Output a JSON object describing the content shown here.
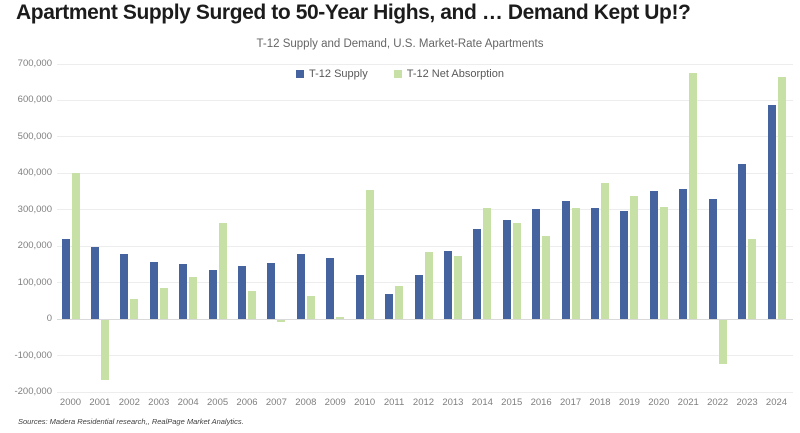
{
  "title": "Apartment Supply Surged to 50-Year Highs, and … Demand Kept Up!?",
  "subtitle": "T-12 Supply and Demand, U.S. Market-Rate Apartments",
  "legend": {
    "supply_label": "T-12 Supply",
    "absorption_label": "T-12 Net Absorption"
  },
  "source": "Sources: Madera Residential research,, RealPage Market Analytics.",
  "colors": {
    "supply": "#44639F",
    "absorption": "#C7E0A5",
    "grid": "#EDEDED",
    "zero_line": "#D9D9D9",
    "axis_text": "#7F7F7F",
    "title_text": "#1C1C1C"
  },
  "chart_data": {
    "type": "bar",
    "title": "Apartment Supply Surged to 50-Year Highs, and … Demand Kept Up!?",
    "subtitle": "T-12 Supply and Demand, U.S. Market-Rate Apartments",
    "categories": [
      "2000",
      "2001",
      "2002",
      "2003",
      "2004",
      "2005",
      "2006",
      "2007",
      "2008",
      "2009",
      "2010",
      "2011",
      "2012",
      "2013",
      "2014",
      "2015",
      "2016",
      "2017",
      "2018",
      "2019",
      "2020",
      "2021",
      "2022",
      "2023",
      "2024"
    ],
    "series": [
      {
        "name": "T-12 Supply",
        "color": "#44639F",
        "values": [
          220000,
          198000,
          180000,
          157000,
          150000,
          135000,
          145000,
          153000,
          180000,
          168000,
          120000,
          68000,
          120000,
          187000,
          248000,
          273000,
          303000,
          325000,
          305000,
          297000,
          352000,
          358000,
          330000,
          425000,
          588000
        ]
      },
      {
        "name": "T-12 Net Absorption",
        "color": "#C7E0A5",
        "values": [
          400000,
          -165000,
          55000,
          85000,
          115000,
          263000,
          78000,
          -5000,
          63000,
          5000,
          355000,
          90000,
          185000,
          172000,
          305000,
          265000,
          228000,
          305000,
          373000,
          337000,
          308000,
          675000,
          -120000,
          220000,
          665000
        ]
      }
    ],
    "xlabel": "",
    "ylabel": "",
    "ylim": [
      -200000,
      700000
    ],
    "yticks": [
      {
        "value": 700000,
        "label": "700,000"
      },
      {
        "value": 600000,
        "label": "600,000"
      },
      {
        "value": 500000,
        "label": "500,000"
      },
      {
        "value": 400000,
        "label": "400,000"
      },
      {
        "value": 300000,
        "label": "300,000"
      },
      {
        "value": 200000,
        "label": "200,000"
      },
      {
        "value": 100000,
        "label": "100,000"
      },
      {
        "value": 0,
        "label": "0"
      },
      {
        "value": -100000,
        "label": "-100,000"
      },
      {
        "value": -200000,
        "label": "-200,000"
      }
    ],
    "grid": true,
    "legend_position": "top-center"
  }
}
